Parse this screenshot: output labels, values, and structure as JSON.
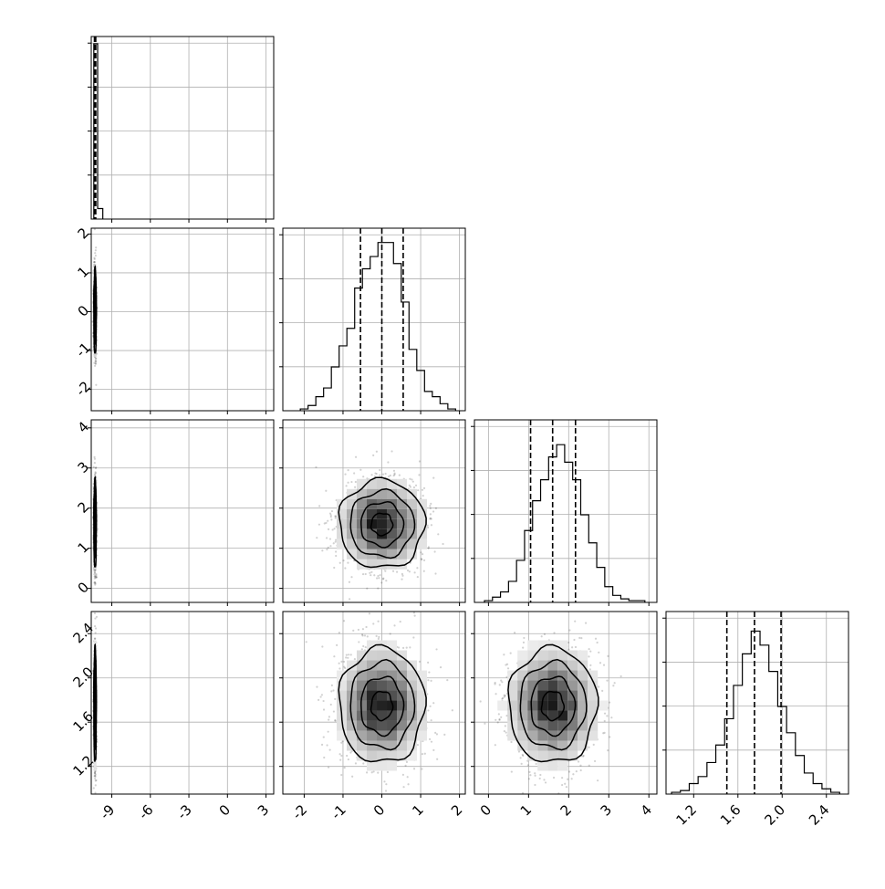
{
  "chart_data": {
    "type": "corner",
    "panel_order": [
      "p0",
      "p1",
      "p2",
      "p3"
    ],
    "axes": {
      "p0": {
        "range": [
          -10.6,
          3.6
        ],
        "ticks": [
          "-9",
          "-6",
          "-3",
          "0",
          "3"
        ],
        "tick_values": [
          -9,
          -6,
          -3,
          0,
          3
        ]
      },
      "p1": {
        "range": [
          -2.55,
          2.15
        ],
        "ticks": [
          "-2",
          "-1",
          "0",
          "1",
          "2"
        ],
        "tick_values": [
          -2,
          -1,
          0,
          1,
          2
        ]
      },
      "p2": {
        "range": [
          -0.35,
          4.2
        ],
        "ticks": [
          "0",
          "1",
          "2",
          "3",
          "4"
        ],
        "tick_values": [
          0,
          1,
          2,
          3,
          4
        ]
      },
      "p3": {
        "range": [
          0.95,
          2.6
        ],
        "ticks": [
          "1.2",
          "1.6",
          "2.0",
          "2.4"
        ],
        "tick_values": [
          1.2,
          1.6,
          2.0,
          2.4
        ]
      }
    },
    "histograms": [
      {
        "param": "p0",
        "bin_edges": [
          -10.4,
          -10.1,
          -9.7
        ],
        "counts": [
          1.0,
          0.06
        ],
        "quantiles": [
          -10.35,
          -10.3,
          -10.25
        ]
      },
      {
        "param": "p1",
        "bin_edges": [
          -2.1,
          -1.9,
          -1.7,
          -1.5,
          -1.3,
          -1.1,
          -0.9,
          -0.7,
          -0.5,
          -0.3,
          -0.1,
          0.1,
          0.3,
          0.5,
          0.7,
          0.9,
          1.1,
          1.3,
          1.5,
          1.7,
          1.9
        ],
        "counts": [
          0.01,
          0.03,
          0.08,
          0.13,
          0.25,
          0.37,
          0.47,
          0.7,
          0.81,
          0.88,
          0.96,
          0.96,
          0.84,
          0.62,
          0.35,
          0.23,
          0.11,
          0.08,
          0.04,
          0.01
        ],
        "quantiles": [
          -0.55,
          0.0,
          0.55
        ]
      },
      {
        "param": "p2",
        "bin_edges": [
          -0.1,
          0.1,
          0.3,
          0.5,
          0.7,
          0.9,
          1.1,
          1.3,
          1.5,
          1.7,
          1.9,
          2.1,
          2.3,
          2.5,
          2.7,
          2.9,
          3.1,
          3.3,
          3.5,
          3.7,
          3.9
        ],
        "counts": [
          0.01,
          0.03,
          0.06,
          0.12,
          0.24,
          0.41,
          0.58,
          0.7,
          0.83,
          0.9,
          0.8,
          0.7,
          0.5,
          0.34,
          0.2,
          0.09,
          0.04,
          0.02,
          0.01,
          0.01
        ],
        "quantiles": [
          1.05,
          1.6,
          2.17
        ]
      },
      {
        "param": "p3",
        "bin_edges": [
          1.0,
          1.08,
          1.16,
          1.24,
          1.32,
          1.4,
          1.48,
          1.56,
          1.64,
          1.72,
          1.8,
          1.88,
          1.96,
          2.04,
          2.12,
          2.2,
          2.28,
          2.36,
          2.44,
          2.52
        ],
        "counts": [
          0.01,
          0.02,
          0.06,
          0.1,
          0.18,
          0.28,
          0.43,
          0.62,
          0.8,
          0.93,
          0.85,
          0.7,
          0.5,
          0.35,
          0.22,
          0.12,
          0.06,
          0.03,
          0.01
        ],
        "quantiles": [
          1.5,
          1.75,
          1.99
        ]
      }
    ],
    "correlations": [
      {
        "x": "p0",
        "y": "p1",
        "center": [
          -10.3,
          0.0
        ],
        "sd": [
          0.05,
          0.55
        ]
      },
      {
        "x": "p0",
        "y": "p2",
        "center": [
          -10.3,
          1.6
        ],
        "sd": [
          0.05,
          0.55
        ]
      },
      {
        "x": "p0",
        "y": "p3",
        "center": [
          -10.3,
          1.75
        ],
        "sd": [
          0.05,
          0.26
        ]
      },
      {
        "x": "p1",
        "y": "p2",
        "center": [
          0.0,
          1.6
        ],
        "sd": [
          0.55,
          0.55
        ]
      },
      {
        "x": "p1",
        "y": "p3",
        "center": [
          0.0,
          1.75
        ],
        "sd": [
          0.55,
          0.26
        ]
      },
      {
        "x": "p2",
        "y": "p3",
        "center": [
          1.6,
          1.75
        ],
        "sd": [
          0.55,
          0.26
        ]
      }
    ],
    "contour_levels_sigma": [
      0.5,
      1.0,
      1.5,
      2.0
    ],
    "grid": true,
    "quantile_linestyle": "dashed"
  }
}
